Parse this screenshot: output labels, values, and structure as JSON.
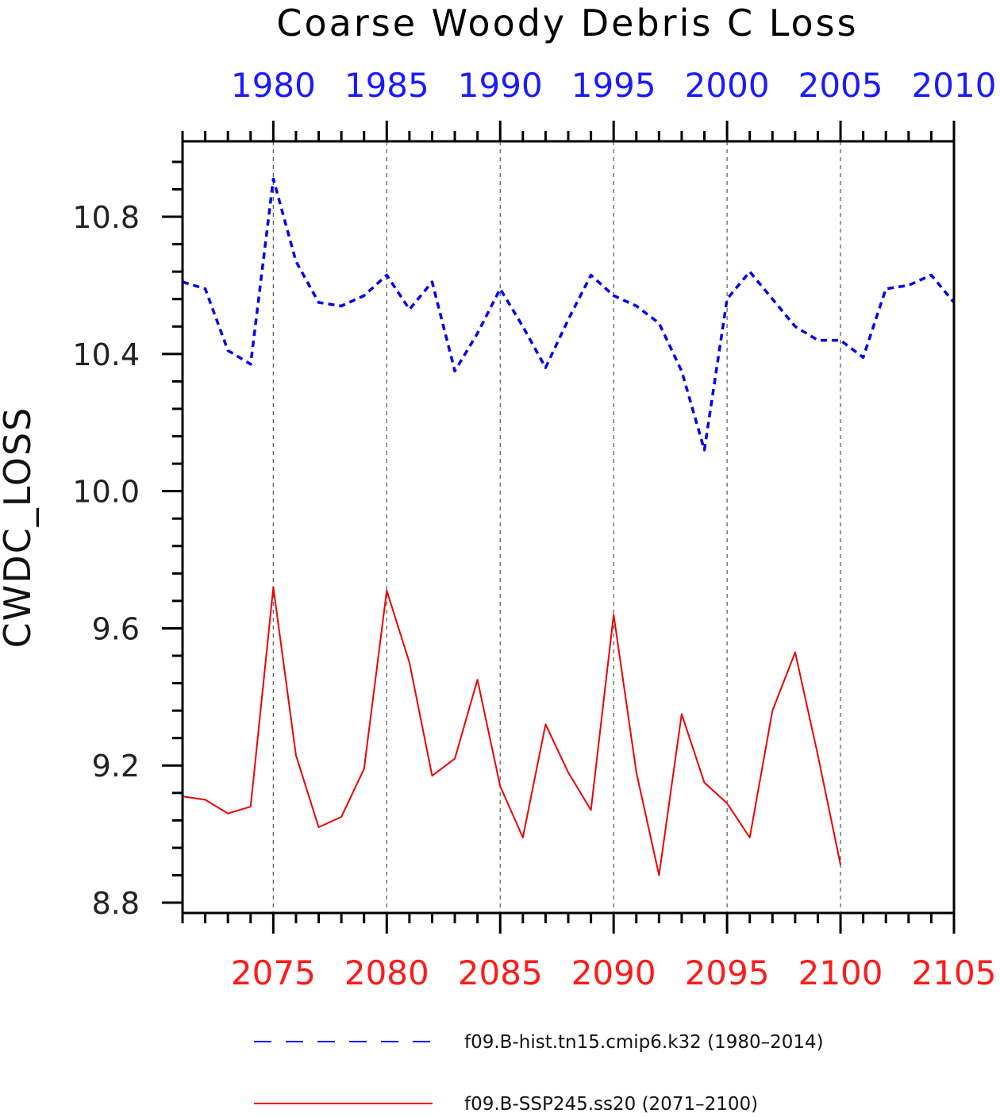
{
  "chart_data": {
    "type": "line",
    "title": "Coarse Woody Debris C Loss",
    "ylabel": "CWDC_LOSS",
    "ylim": [
      8.77,
      11.02
    ],
    "yticks": [
      8.8,
      9.2,
      9.6,
      10.0,
      10.4,
      10.8
    ],
    "ytick_labels": [
      "8.8",
      "9.2",
      "9.6",
      "10.0",
      "10.4",
      "10.8"
    ],
    "grid": "dashed vertical lines at major bottom-axis ticks",
    "legend_position": "bottom",
    "top_axis": {
      "color": "#1a1aff",
      "xlim": [
        1976,
        2010
      ],
      "major_ticks": [
        1980,
        1985,
        1990,
        1995,
        2000,
        2005,
        2010
      ],
      "tick_labels": [
        "1980",
        "1985",
        "1990",
        "1995",
        "2000",
        "2005",
        "2010"
      ]
    },
    "bottom_axis": {
      "color": "#ff1a1a",
      "xlim": [
        2071,
        2105
      ],
      "major_ticks": [
        2075,
        2080,
        2085,
        2090,
        2095,
        2100,
        2105
      ],
      "tick_labels": [
        "2075",
        "2080",
        "2085",
        "2090",
        "2095",
        "2100",
        "2105"
      ]
    },
    "series": [
      {
        "name": "f09.B-hist.tn15.cmip6.k32 (1980–2014)",
        "color": "#0000ee",
        "style": "dashed",
        "x": [
          1976,
          1977,
          1978,
          1979,
          1980,
          1981,
          1982,
          1983,
          1984,
          1985,
          1986,
          1987,
          1988,
          1989,
          1990,
          1991,
          1992,
          1993,
          1994,
          1995,
          1996,
          1997,
          1998,
          1999,
          2000,
          2001,
          2002,
          2003,
          2004,
          2005,
          2006,
          2007,
          2008,
          2009,
          2010
        ],
        "values": [
          10.61,
          10.59,
          10.41,
          10.37,
          10.91,
          10.67,
          10.55,
          10.54,
          10.57,
          10.63,
          10.53,
          10.61,
          10.35,
          10.46,
          10.59,
          10.48,
          10.36,
          10.5,
          10.63,
          10.57,
          10.54,
          10.49,
          10.35,
          10.12,
          10.56,
          10.64,
          10.56,
          10.48,
          10.44,
          10.44,
          10.39,
          10.59,
          10.6,
          10.63,
          10.55
        ]
      },
      {
        "name": "f09.B-SSP245.ss20 (2071–2100)",
        "color": "#ee0000",
        "style": "solid",
        "x": [
          2071,
          2072,
          2073,
          2074,
          2075,
          2076,
          2077,
          2078,
          2079,
          2080,
          2081,
          2082,
          2083,
          2084,
          2085,
          2086,
          2087,
          2088,
          2089,
          2090,
          2091,
          2092,
          2093,
          2094,
          2095,
          2096,
          2097,
          2098,
          2099,
          2100
        ],
        "values": [
          9.11,
          9.1,
          9.06,
          9.08,
          9.72,
          9.23,
          9.02,
          9.05,
          9.19,
          9.71,
          9.5,
          9.17,
          9.22,
          9.45,
          9.14,
          8.99,
          9.32,
          9.18,
          9.07,
          9.64,
          9.18,
          8.88,
          9.35,
          9.15,
          9.09,
          8.99,
          9.36,
          9.53,
          9.23,
          8.91
        ]
      }
    ]
  }
}
